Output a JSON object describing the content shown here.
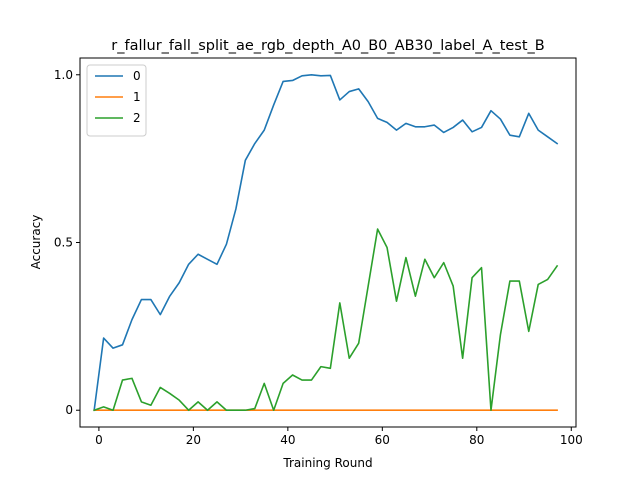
{
  "chart_data": {
    "type": "line",
    "title": "r_fallur_fall_split_ae_rgb_depth_A0_B0_AB30_label_A_test_B",
    "xlabel": "Training Round",
    "ylabel": "Accuracy",
    "xlim": [
      -4,
      101
    ],
    "ylim": [
      -0.05,
      1.05
    ],
    "xticks": [
      0,
      20,
      40,
      60,
      80,
      100
    ],
    "xtick_labels": [
      "0",
      "20",
      "40",
      "60",
      "80",
      "100"
    ],
    "yticks": [
      0,
      0.5,
      1.0
    ],
    "ytick_labels": [
      "0",
      "0.5",
      "1.0"
    ],
    "grid": false,
    "legend": "top-left",
    "x": [
      -1,
      1,
      3,
      5,
      7,
      9,
      11,
      13,
      15,
      17,
      19,
      21,
      23,
      25,
      27,
      29,
      31,
      33,
      35,
      37,
      39,
      41,
      43,
      45,
      47,
      49,
      51,
      53,
      55,
      57,
      59,
      61,
      63,
      65,
      67,
      69,
      71,
      73,
      75,
      77,
      79,
      81,
      83,
      85,
      87,
      89,
      91,
      93,
      95,
      97
    ],
    "series": [
      {
        "name": "0",
        "color": "#1f77b4",
        "values": [
          0.0,
          0.215,
          0.185,
          0.195,
          0.27,
          0.33,
          0.33,
          0.285,
          0.34,
          0.38,
          0.435,
          0.465,
          0.45,
          0.435,
          0.495,
          0.6,
          0.745,
          0.795,
          0.835,
          0.91,
          0.98,
          0.983,
          0.997,
          1.0,
          0.997,
          0.998,
          0.925,
          0.95,
          0.958,
          0.92,
          0.87,
          0.858,
          0.835,
          0.855,
          0.845,
          0.845,
          0.85,
          0.828,
          0.843,
          0.865,
          0.83,
          0.843,
          0.893,
          0.868,
          0.82,
          0.815,
          0.885,
          0.835,
          0.815,
          0.795
        ]
      },
      {
        "name": "1",
        "color": "#ff7f0e",
        "values": [
          0.0,
          0.0,
          0.0,
          0.0,
          0.0,
          0.0,
          0.0,
          0.0,
          0.0,
          0.0,
          0.0,
          0.0,
          0.0,
          0.0,
          0.0,
          0.0,
          0.0,
          0.0,
          0.0,
          0.0,
          0.0,
          0.0,
          0.0,
          0.0,
          0.0,
          0.0,
          0.0,
          0.0,
          0.0,
          0.0,
          0.0,
          0.0,
          0.0,
          0.0,
          0.0,
          0.0,
          0.0,
          0.0,
          0.0,
          0.0,
          0.0,
          0.0,
          0.0,
          0.0,
          0.0,
          0.0,
          0.0,
          0.0,
          0.0,
          0.0
        ]
      },
      {
        "name": "2",
        "color": "#2ca02c",
        "values": [
          0.0,
          0.01,
          0.0,
          0.09,
          0.095,
          0.025,
          0.015,
          0.068,
          0.05,
          0.03,
          0.0,
          0.025,
          0.0,
          0.025,
          0.0,
          0.0,
          0.0,
          0.005,
          0.08,
          0.0,
          0.08,
          0.105,
          0.09,
          0.09,
          0.13,
          0.125,
          0.32,
          0.155,
          0.2,
          0.37,
          0.54,
          0.485,
          0.325,
          0.455,
          0.34,
          0.45,
          0.395,
          0.44,
          0.37,
          0.155,
          0.395,
          0.425,
          0.0,
          0.225,
          0.385,
          0.385,
          0.235,
          0.375,
          0.39,
          0.43
        ]
      }
    ]
  }
}
